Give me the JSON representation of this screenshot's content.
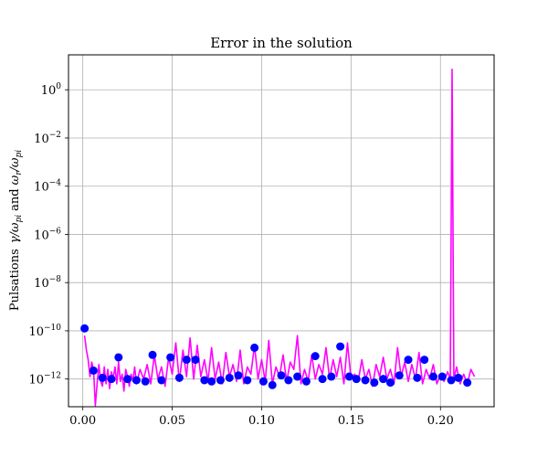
{
  "chart_data": {
    "type": "line",
    "title": "Error in the solution",
    "xlabel": "",
    "ylabel": "Pulsations γ/ω_pi and ω_r/ω_pi",
    "ylabel_parts": {
      "prefix": "Pulsations",
      "sym1": "γ/ω",
      "sub1": "pi",
      "mid": "and",
      "sym2": "ω",
      "sub2a": "r",
      "slash": "/ω",
      "sub2b": "pi"
    },
    "yscale": "log",
    "xlim": [
      -0.008,
      0.23
    ],
    "ylim_exp": [
      -13.15,
      1.45
    ],
    "grid": true,
    "legend": "none",
    "x_ticks": [
      0.0,
      0.05,
      0.1,
      0.15,
      0.2
    ],
    "x_tick_labels": [
      "0.00",
      "0.05",
      "0.10",
      "0.15",
      "0.20"
    ],
    "y_tick_exponents": [
      0,
      -2,
      -4,
      -6,
      -8,
      -10,
      -12
    ],
    "y_tick_labels": [
      {
        "base": "10",
        "exp": "0"
      },
      {
        "base": "10",
        "exp": "−2"
      },
      {
        "base": "10",
        "exp": "−4"
      },
      {
        "base": "10",
        "exp": "−6"
      },
      {
        "base": "10",
        "exp": "−8"
      },
      {
        "base": "10",
        "exp": "−10"
      },
      {
        "base": "10",
        "exp": "−12"
      }
    ],
    "series": [
      {
        "kind": "line",
        "color": "#ff00ff",
        "x": [
          0.001,
          0.002,
          0.003,
          0.004,
          0.005,
          0.006,
          0.007,
          0.008,
          0.009,
          0.01,
          0.011,
          0.012,
          0.013,
          0.014,
          0.015,
          0.016,
          0.017,
          0.018,
          0.019,
          0.02,
          0.021,
          0.022,
          0.023,
          0.024,
          0.025,
          0.026,
          0.027,
          0.028,
          0.029,
          0.03,
          0.032,
          0.034,
          0.036,
          0.038,
          0.04,
          0.042,
          0.044,
          0.046,
          0.048,
          0.05,
          0.052,
          0.054,
          0.056,
          0.058,
          0.06,
          0.062,
          0.064,
          0.066,
          0.068,
          0.07,
          0.072,
          0.074,
          0.076,
          0.078,
          0.08,
          0.082,
          0.084,
          0.086,
          0.088,
          0.09,
          0.092,
          0.094,
          0.096,
          0.098,
          0.1,
          0.102,
          0.104,
          0.106,
          0.108,
          0.11,
          0.112,
          0.114,
          0.116,
          0.118,
          0.12,
          0.122,
          0.124,
          0.126,
          0.128,
          0.13,
          0.132,
          0.134,
          0.136,
          0.138,
          0.14,
          0.142,
          0.144,
          0.146,
          0.148,
          0.15,
          0.152,
          0.154,
          0.156,
          0.158,
          0.16,
          0.162,
          0.164,
          0.166,
          0.168,
          0.17,
          0.172,
          0.174,
          0.176,
          0.178,
          0.18,
          0.182,
          0.184,
          0.186,
          0.188,
          0.19,
          0.192,
          0.194,
          0.196,
          0.198,
          0.2,
          0.202,
          0.204,
          0.2055,
          0.2065,
          0.2075,
          0.209,
          0.211,
          0.213,
          0.215,
          0.217,
          0.219
        ],
        "y_exp": [
          -10.2,
          -10.8,
          -11.2,
          -11.9,
          -11.3,
          -11.6,
          -13.1,
          -12.2,
          -11.4,
          -12.1,
          -12.3,
          -11.5,
          -12.2,
          -11.6,
          -12.4,
          -11.7,
          -12.0,
          -11.5,
          -12.2,
          -11.3,
          -12.1,
          -11.8,
          -12.5,
          -11.6,
          -11.9,
          -12.3,
          -11.8,
          -12.1,
          -11.5,
          -12.2,
          -11.6,
          -12.0,
          -11.4,
          -12.2,
          -11.0,
          -12.0,
          -11.5,
          -12.3,
          -11.1,
          -11.8,
          -10.5,
          -12.1,
          -10.8,
          -11.9,
          -10.3,
          -12.0,
          -10.6,
          -11.9,
          -11.2,
          -12.1,
          -10.7,
          -12.0,
          -11.3,
          -12.2,
          -10.9,
          -11.9,
          -11.4,
          -12.1,
          -10.8,
          -12.2,
          -11.5,
          -11.8,
          -10.6,
          -12.0,
          -11.2,
          -12.1,
          -10.4,
          -12.2,
          -11.5,
          -11.9,
          -11.0,
          -12.1,
          -11.3,
          -11.6,
          -10.2,
          -12.2,
          -11.6,
          -12.1,
          -11.0,
          -12.0,
          -11.4,
          -11.8,
          -10.7,
          -12.0,
          -11.2,
          -11.9,
          -11.1,
          -12.2,
          -10.5,
          -12.0,
          -11.8,
          -12.1,
          -11.2,
          -12.0,
          -11.6,
          -12.3,
          -11.4,
          -11.9,
          -11.1,
          -12.0,
          -11.6,
          -12.2,
          -10.7,
          -11.9,
          -11.3,
          -12.1,
          -11.4,
          -12.0,
          -10.9,
          -12.2,
          -11.6,
          -12.0,
          -11.4,
          -12.2,
          -11.8,
          -12.1,
          -11.7,
          -12.0,
          0.85,
          -12.0,
          -11.5,
          -12.2,
          -11.8,
          -12.2,
          -11.6,
          -11.9
        ]
      },
      {
        "kind": "scatter",
        "color": "#0000ff",
        "x": [
          0.001,
          0.006,
          0.011,
          0.016,
          0.02,
          0.025,
          0.03,
          0.035,
          0.039,
          0.044,
          0.049,
          0.054,
          0.058,
          0.063,
          0.068,
          0.072,
          0.077,
          0.082,
          0.087,
          0.092,
          0.096,
          0.101,
          0.106,
          0.111,
          0.115,
          0.12,
          0.125,
          0.13,
          0.134,
          0.139,
          0.144,
          0.149,
          0.153,
          0.158,
          0.163,
          0.168,
          0.172,
          0.177,
          0.182,
          0.187,
          0.191,
          0.196,
          0.201,
          0.206,
          0.21,
          0.215
        ],
        "y_exp": [
          -9.9,
          -11.65,
          -11.95,
          -12.0,
          -11.1,
          -12.0,
          -12.05,
          -12.1,
          -11.0,
          -12.05,
          -11.1,
          -11.95,
          -11.2,
          -11.2,
          -12.05,
          -12.1,
          -12.05,
          -11.95,
          -11.85,
          -12.05,
          -10.7,
          -12.1,
          -12.25,
          -11.85,
          -12.05,
          -11.9,
          -12.1,
          -11.05,
          -12.0,
          -11.9,
          -10.65,
          -11.9,
          -12.0,
          -12.05,
          -12.15,
          -12.0,
          -12.15,
          -11.85,
          -11.2,
          -11.95,
          -11.2,
          -11.9,
          -11.9,
          -12.05,
          -11.95,
          -12.15
        ]
      }
    ]
  }
}
